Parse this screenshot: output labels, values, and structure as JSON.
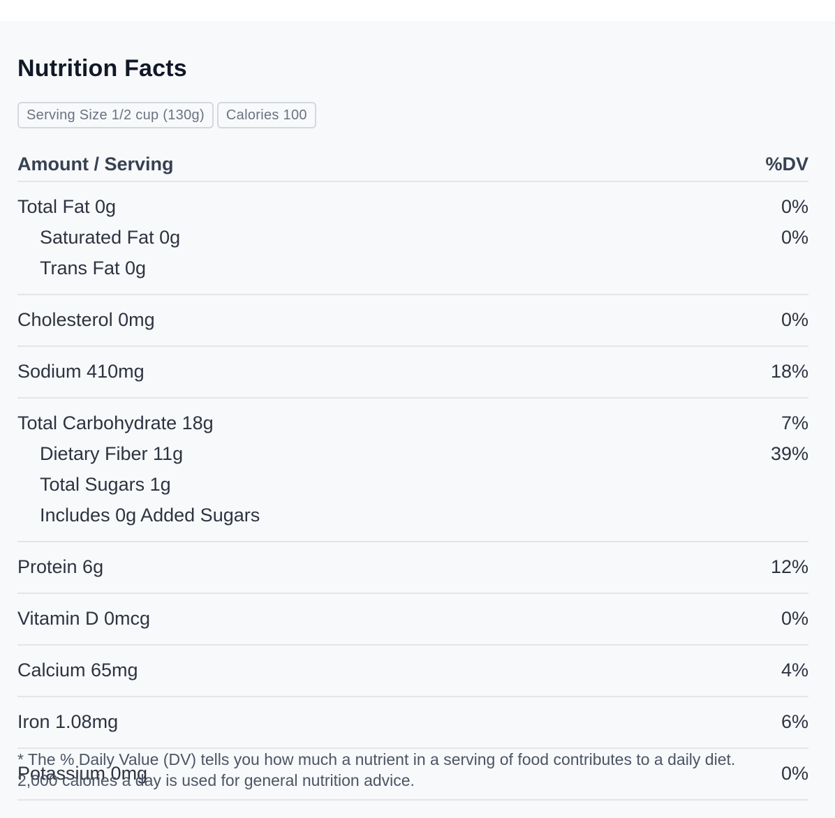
{
  "title": "Nutrition Facts",
  "chips": {
    "serving_size": "Serving Size 1/2 cup (130g)",
    "calories": "Calories 100"
  },
  "header": {
    "amount": "Amount / Serving",
    "dv": "%DV"
  },
  "groups": [
    {
      "rows": [
        {
          "label": "Total Fat 0g",
          "dv": "0%"
        },
        {
          "label": "Saturated Fat 0g",
          "dv": "0%",
          "sub": true
        },
        {
          "label": "Trans Fat 0g",
          "dv": "",
          "sub": true
        }
      ]
    },
    {
      "rows": [
        {
          "label": "Cholesterol 0mg",
          "dv": "0%"
        }
      ]
    },
    {
      "rows": [
        {
          "label": "Sodium 410mg",
          "dv": "18%"
        }
      ]
    },
    {
      "rows": [
        {
          "label": "Total Carbohydrate 18g",
          "dv": "7%"
        },
        {
          "label": "Dietary Fiber 11g",
          "dv": "39%",
          "sub": true
        },
        {
          "label": "Total Sugars 1g",
          "dv": "",
          "sub": true
        },
        {
          "label": "Includes 0g Added Sugars",
          "dv": "",
          "sub": true
        }
      ]
    },
    {
      "rows": [
        {
          "label": "Protein 6g",
          "dv": "12%"
        }
      ]
    },
    {
      "rows": [
        {
          "label": "Vitamin D 0mcg",
          "dv": "0%"
        }
      ]
    },
    {
      "rows": [
        {
          "label": "Calcium 65mg",
          "dv": "4%"
        }
      ]
    },
    {
      "rows": [
        {
          "label": "Iron 1.08mg",
          "dv": "6%"
        }
      ]
    },
    {
      "rows": [
        {
          "label": "Potassium 0mg",
          "dv": "0%"
        }
      ]
    }
  ],
  "footnote": {
    "line1": "* The % Daily Value (DV) tells you how much a nutrient in a serving of food contributes to a daily diet.",
    "line2": "2,000 calories a day is used for general nutrition advice."
  }
}
